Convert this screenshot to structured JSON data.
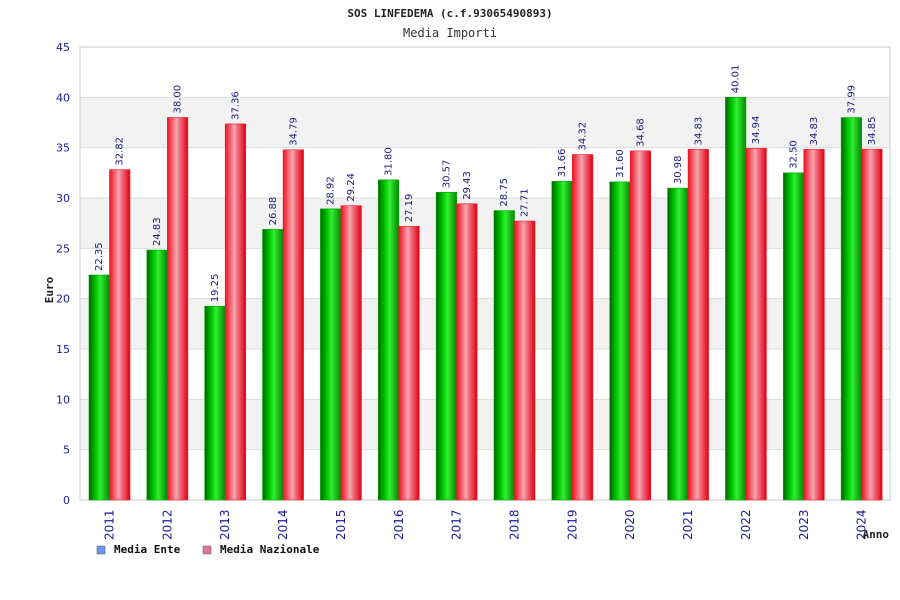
{
  "header": {
    "title": "SOS LINFEDEMA (c.f.93065490893)",
    "subtitle": "Media Importi"
  },
  "colors": {
    "series1": "#00aa00",
    "series2": "#ee1c2a",
    "legend1": "#6699ee",
    "legend2": "#dd7799"
  },
  "chart_data": {
    "type": "bar",
    "title": "SOS LINFEDEMA (c.f.93065490893)",
    "subtitle": "Media Importi",
    "xlabel": "Anno",
    "ylabel": "Euro",
    "ylim": [
      0,
      45
    ],
    "yticks": [
      0,
      5,
      10,
      15,
      20,
      25,
      30,
      35,
      40,
      45
    ],
    "grid": true,
    "legend_position": "bottom-left",
    "categories": [
      "2011",
      "2012",
      "2013",
      "2014",
      "2015",
      "2016",
      "2017",
      "2018",
      "2019",
      "2020",
      "2021",
      "2022",
      "2023",
      "2024"
    ],
    "series": [
      {
        "name": "Media Ente",
        "values": [
          22.35,
          24.83,
          19.25,
          26.88,
          28.92,
          31.8,
          30.57,
          28.75,
          31.66,
          31.6,
          30.98,
          40.01,
          32.5,
          37.99
        ]
      },
      {
        "name": "Media Nazionale",
        "values": [
          32.82,
          38.0,
          37.36,
          34.79,
          29.24,
          27.19,
          29.43,
          27.71,
          34.32,
          34.68,
          34.83,
          34.94,
          34.83,
          34.85
        ]
      }
    ]
  }
}
